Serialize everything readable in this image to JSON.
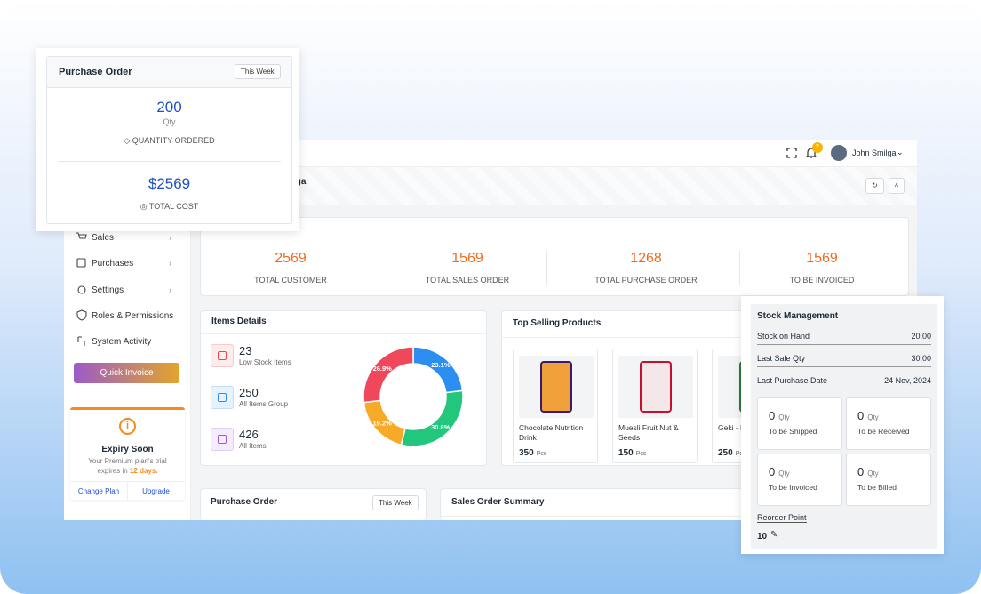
{
  "header": {
    "page_title": "lga",
    "user_name": "John Smilga",
    "notification_count": "2"
  },
  "sidebar": {
    "menu": [
      "Sales",
      "Purchases",
      "Settings",
      "Roles & Permissions",
      "System Activity"
    ],
    "quick_invoice": "Quick Invoice",
    "expiry": {
      "title": "Expiry Soon",
      "message": "Your Premium plan's trial expires in",
      "days": "12 days.",
      "change_plan": "Change Plan",
      "upgrade": "Upgrade"
    }
  },
  "overview": {
    "stats": [
      {
        "value": "2569",
        "label": "TOTAL CUSTOMER"
      },
      {
        "value": "1569",
        "label": "TOTAL SALES ORDER"
      },
      {
        "value": "1268",
        "label": "TOTAL PURCHASE ORDER"
      },
      {
        "value": "1569",
        "label": "TO BE INVOICED"
      }
    ]
  },
  "items_details": {
    "title": "Items Details",
    "items": [
      {
        "value": "23",
        "label": "Low Stock Items"
      },
      {
        "value": "250",
        "label": "All Items Group"
      },
      {
        "value": "426",
        "label": "All Items"
      }
    ],
    "donut": {
      "values": [
        23.1,
        30.8,
        19.2,
        26.9
      ],
      "value_labels": [
        "23.1%",
        "30.8%",
        "19.2%",
        "26.9%"
      ],
      "colors": [
        "#2b8ef0",
        "#22c77c",
        "#f7a928",
        "#f0475c"
      ]
    }
  },
  "top_selling": {
    "title": "Top Selling Products",
    "products": [
      {
        "name": "Chocolate Nutrition Drink",
        "qty": "350",
        "unit": "Pcs"
      },
      {
        "name": "Muesli Fruit Nut & Seeds",
        "qty": "150",
        "unit": "Pcs"
      },
      {
        "name": "Geki - Korean",
        "qty": "250",
        "unit": "Pcs"
      }
    ]
  },
  "purchase_order_card": {
    "title": "Purchase Order",
    "period": "This Week"
  },
  "sales_order_summary": {
    "title": "Sales Order Summary"
  },
  "purchase_order_popup": {
    "title": "Purchase Order",
    "period": "This Week",
    "quantity": "200",
    "quantity_unit": "Qty",
    "quantity_label": "QUANTITY ORDERED",
    "total_cost": "$2569",
    "total_cost_label": "TOTAL COST"
  },
  "stock_management": {
    "title": "Stock Management",
    "rows": [
      {
        "label": "Stock on Hand",
        "value": "20.00"
      },
      {
        "label": "Last Sale Qty",
        "value": "30.00"
      },
      {
        "label": "Last Purchase Date",
        "value": "24 Nov, 2024"
      }
    ],
    "boxes": [
      {
        "value": "0",
        "unit": "Qty",
        "label": "To be Shipped"
      },
      {
        "value": "0",
        "unit": "Qty",
        "label": "To be Received"
      },
      {
        "value": "0",
        "unit": "Qty",
        "label": "To be Invoiced"
      },
      {
        "value": "0",
        "unit": "Qty",
        "label": "To be Billed"
      }
    ],
    "reorder_label": "Reorder Point",
    "reorder_value": "10"
  }
}
